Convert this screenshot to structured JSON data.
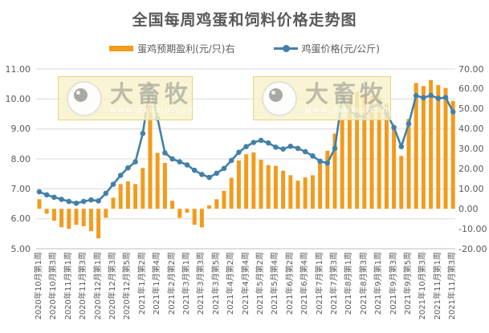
{
  "title": "全国每周鸡蛋和饲料价格走势图",
  "legend": [
    {
      "label": "蛋鸡预期盈利(元/只)右",
      "type": "bar",
      "color": "#F29B1D"
    },
    {
      "label": "鸡蛋价格(元/公斤)",
      "type": "line",
      "color": "#4380A8"
    }
  ],
  "watermark": {
    "text": "大畜牧",
    "url": "www.dxumu.com"
  },
  "chart_data": {
    "type": "combo-bar-line",
    "title": "全国每周鸡蛋和饲料价格走势图",
    "grid": true,
    "legend_position": "top",
    "left_axis": {
      "label": "鸡蛋价格(元/公斤)",
      "min": 5,
      "max": 11,
      "step": 1,
      "ticks": [
        "11.00",
        "10.00",
        "9.00",
        "8.00",
        "7.00",
        "6.00",
        "5.00"
      ]
    },
    "right_axis": {
      "label": "蛋鸡预期盈利(元/只)",
      "min": -20,
      "max": 70,
      "step": 10,
      "ticks": [
        "70.00",
        "60.00",
        "50.00",
        "40.00",
        "30.00",
        "20.00",
        "10.00",
        "0.00",
        "-10.00",
        "-20.00"
      ]
    },
    "x_tick_every": 2,
    "x_tick_labels": [
      "2020年10月第1周",
      "2020年10月第3周",
      "2020年11月第1周",
      "2020年11月第3周",
      "2020年12月第1周",
      "2020年12月第3周",
      "2020年12月第5周",
      "2021年1月第2周",
      "2021年1月第4周",
      "2021年2月第2周",
      "2021年3月第1周",
      "2021年3月第3周",
      "2021年3月第5周",
      "2021年4月第2周",
      "2021年4月第4周",
      "2021年5月第2周",
      "2021年5月第4周",
      "2021年6月第2周",
      "2021年6月第4周",
      "2021年7月第1周",
      "2021年7月第3周",
      "2021年8月第1周",
      "2021年8月第3周",
      "2021年9月第1周",
      "2021年9月第3周",
      "2021年9月第5周",
      "2021年10月第3周",
      "2021年11月第1周",
      "2021年11月第3周"
    ],
    "series": [
      {
        "name": "蛋鸡预期盈利(元/只)右",
        "type": "bar",
        "axis": "right",
        "color": "#F29B1D",
        "values": [
          4.8,
          -2.5,
          -6,
          -9.2,
          -10,
          -8,
          -8.7,
          -11.2,
          -14.8,
          -4.5,
          5.5,
          12.4,
          13.7,
          12.4,
          20.4,
          52,
          28,
          23,
          4,
          -4.6,
          -1.9,
          -8,
          -9.3,
          1.7,
          4.8,
          9,
          15.5,
          24.2,
          27.3,
          28.2,
          24.5,
          21.9,
          21.5,
          19.1,
          16.8,
          14.1,
          15.7,
          16.8,
          23.3,
          29.1,
          37.6,
          45,
          55,
          58.5,
          57.5,
          56.5,
          55.9,
          52.6,
          39.9,
          26.5,
          45,
          63,
          61.5,
          64.5,
          62,
          60.5,
          54
        ]
      },
      {
        "name": "鸡蛋价格(元/公斤)",
        "type": "line",
        "axis": "left",
        "color": "#4380A8",
        "values": [
          6.9,
          6.8,
          6.72,
          6.65,
          6.58,
          6.52,
          6.58,
          6.63,
          6.6,
          6.85,
          7.15,
          7.45,
          7.7,
          7.9,
          8.85,
          10.45,
          9.35,
          8.2,
          8,
          7.9,
          7.8,
          7.62,
          7.48,
          7.38,
          7.52,
          7.68,
          7.95,
          8.22,
          8.41,
          8.55,
          8.62,
          8.53,
          8.39,
          8.33,
          8.42,
          8.35,
          8.24,
          8.1,
          7.92,
          7.86,
          8.35,
          10.05,
          9.6,
          9.45,
          9.4,
          9.7,
          9.84,
          9.53,
          9.05,
          8.41,
          9.17,
          10.11,
          10.04,
          10.12,
          10.02,
          10.05,
          9.57
        ]
      }
    ]
  }
}
